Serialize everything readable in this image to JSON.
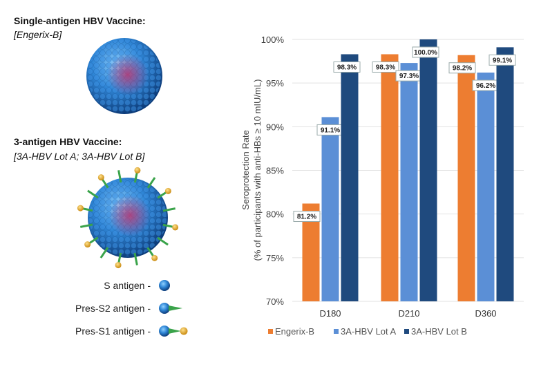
{
  "left_panel": {
    "single_title": "Single-antigen HBV Vaccine:",
    "single_subtitle": "[Engerix-B]",
    "triple_title": "3-antigen HBV Vaccine:",
    "triple_subtitle": "[3A-HBV Lot A; 3A-HBV Lot B]",
    "antigen_legend": [
      {
        "label": "S antigen -",
        "icon": "sphere-icon"
      },
      {
        "label": "Pres-S2 antigen -",
        "icon": "sphere-spike-icon"
      },
      {
        "label": "Pres-S1 antigen -",
        "icon": "sphere-spike-ball-icon"
      }
    ]
  },
  "chart_data": {
    "type": "bar",
    "categories": [
      "D180",
      "D210",
      "D360"
    ],
    "series": [
      {
        "name": "Engerix-B",
        "color": "#ED7D31",
        "values": [
          81.2,
          98.3,
          98.2
        ],
        "labels": [
          "81.2%",
          "98.3%",
          "98.2%"
        ]
      },
      {
        "name": "3A-HBV Lot A",
        "color": "#5B8FD6",
        "values": [
          91.1,
          97.3,
          96.2
        ],
        "labels": [
          "91.1%",
          "97.3%",
          "96.2%"
        ]
      },
      {
        "name": "3A-HBV Lot B",
        "color": "#1F4A7E",
        "values": [
          98.3,
          100.0,
          99.1
        ],
        "labels": [
          "98.3%",
          "100.0%",
          "99.1%"
        ]
      }
    ],
    "ylabel_line1": "Seroprotection Rate",
    "ylabel_line2": "(% of participants with anti-HBs ≥ 10 mIU/mL)",
    "ylim": [
      70,
      100
    ],
    "yticks": [
      70,
      75,
      80,
      85,
      90,
      95,
      100
    ],
    "ytick_labels": [
      "70%",
      "75%",
      "80%",
      "85%",
      "90%",
      "95%",
      "100%"
    ],
    "grid": true,
    "legend": "bottom"
  }
}
